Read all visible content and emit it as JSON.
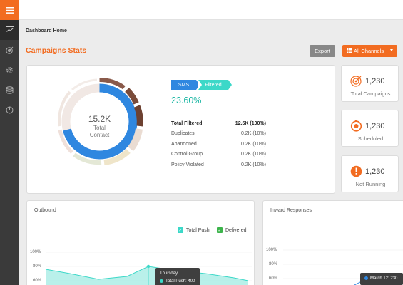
{
  "breadcrumb": "Dashboard Home",
  "page_title": "Campaigns Stats",
  "toolbar": {
    "export_label": "Export",
    "channels_label": "All Channels"
  },
  "summary": {
    "center_value": "15.2K",
    "center_label_line1": "Total",
    "center_label_line2": "Contact",
    "tag_sms": "SMS",
    "tag_filtered": "Filtered",
    "percent": "23.60%",
    "rows": [
      {
        "label": "Total Filtered",
        "value": "12.5K (100%)"
      },
      {
        "label": "Duplicates",
        "value": "0.2K (10%)"
      },
      {
        "label": "Abandoned",
        "value": "0.2K (10%)"
      },
      {
        "label": "Control Group",
        "value": "0.2K (10%)"
      },
      {
        "label": "Policy Violated",
        "value": "0.2K (10%)"
      }
    ]
  },
  "kpis": [
    {
      "value": "1,230",
      "label": "Total Campaigns",
      "icon": "target-icon"
    },
    {
      "value": "1,230",
      "label": "Scheduled",
      "icon": "timer-icon"
    },
    {
      "value": "1,230",
      "label": "Not Running",
      "icon": "alert-icon"
    }
  ],
  "outbound": {
    "title": "Outbound",
    "legend": [
      "Total Push",
      "Delivered"
    ],
    "yticks": [
      "100%",
      "80%",
      "60%"
    ],
    "tooltip_title": "Thursday",
    "tooltip_text": "Total Push: 400"
  },
  "inward": {
    "title": "Inward Responses",
    "yticks": [
      "100%",
      "80%",
      "60%"
    ],
    "tooltip_text": "March 12: 230"
  },
  "colors": {
    "accent": "#f26c21",
    "sidebar": "#3a3a3a",
    "teal": "#3cd8c8",
    "blue": "#2f87e0",
    "brown": "#7a4b3a",
    "green": "#3cb44b"
  }
}
